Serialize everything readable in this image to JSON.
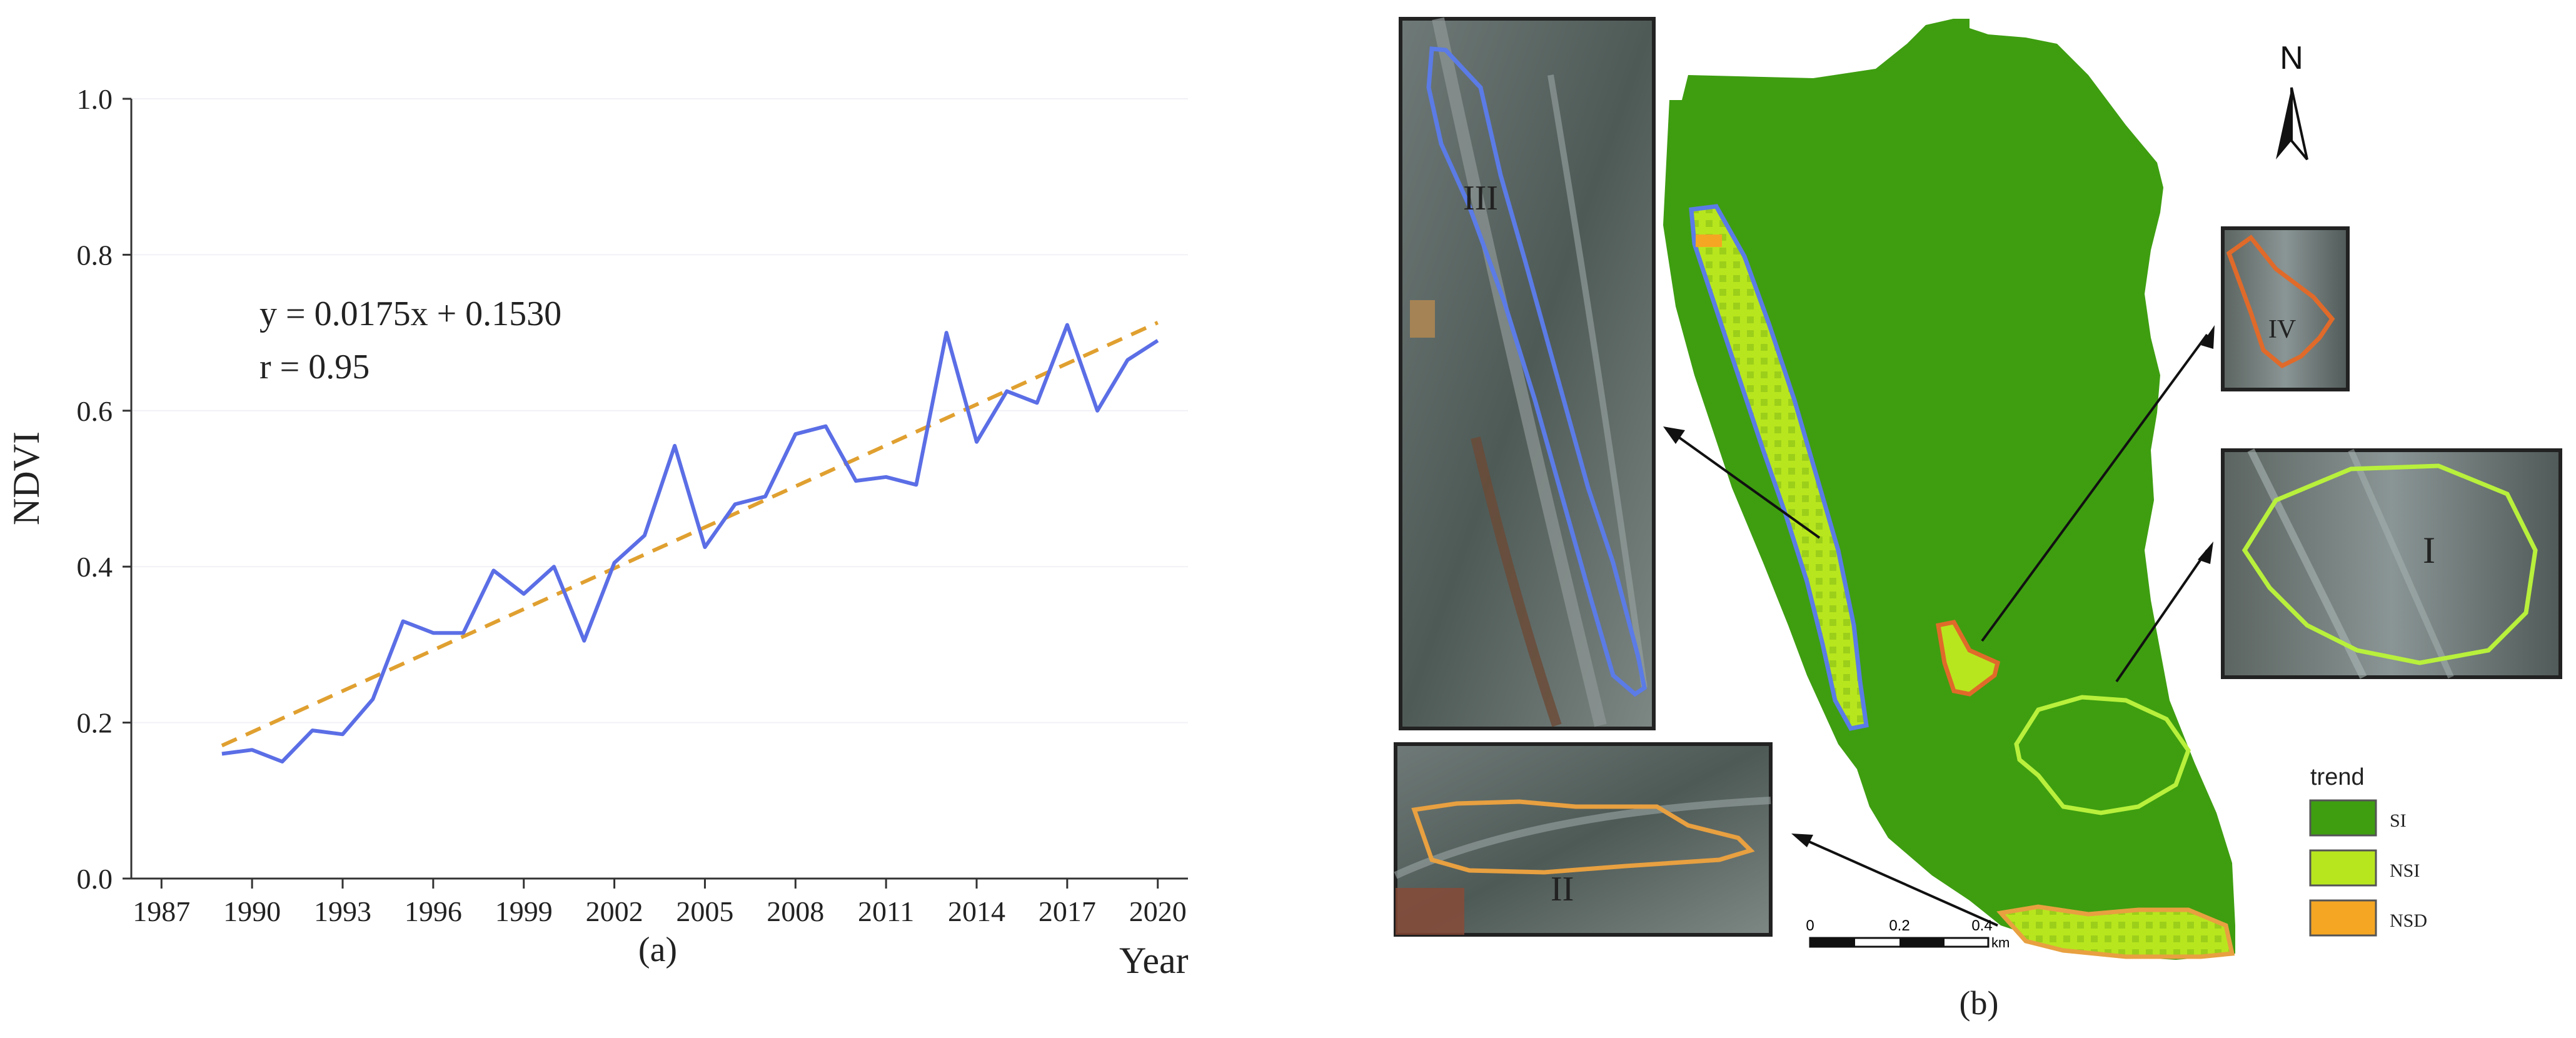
{
  "chart_data": {
    "type": "line",
    "panel_label": "(a)",
    "xlabel": "Year",
    "ylabel": "NDVI",
    "xlim": [
      1986,
      2021
    ],
    "ylim": [
      0.0,
      1.0
    ],
    "x_ticks": [
      "1987",
      "1990",
      "1993",
      "1996",
      "1999",
      "2002",
      "2005",
      "2008",
      "2011",
      "2014",
      "2017",
      "2020"
    ],
    "y_ticks": [
      "0.0",
      "0.2",
      "0.4",
      "0.6",
      "0.8",
      "1.0"
    ],
    "annotation": {
      "equation": "y = 0.0175x + 0.1530",
      "r": "r = 0.95"
    },
    "series": [
      {
        "color": "#5b6ee6",
        "style": "solid",
        "x": [
          1989,
          1990,
          1991,
          1992,
          1993,
          1994,
          1995,
          1996,
          1997,
          1998,
          1999,
          2000,
          2001,
          2002,
          2003,
          2004,
          2005,
          2006,
          2007,
          2008,
          2009,
          2010,
          2011,
          2012,
          2013,
          2014,
          2015,
          2016,
          2017,
          2018,
          2019,
          2020
        ],
        "values": [
          0.16,
          0.165,
          0.15,
          0.19,
          0.185,
          0.23,
          0.33,
          0.315,
          0.315,
          0.395,
          0.365,
          0.4,
          0.305,
          0.405,
          0.44,
          0.555,
          0.425,
          0.48,
          0.49,
          0.57,
          0.58,
          0.51,
          0.515,
          0.505,
          0.7,
          0.56,
          0.625,
          0.61,
          0.71,
          0.6,
          0.665,
          0.69
        ]
      },
      {
        "color": "#e0a030",
        "style": "dashed",
        "x": [
          1989,
          2020
        ],
        "values": [
          0.1705,
          0.713
        ]
      }
    ]
  },
  "map_panel": {
    "panel_label": "(b)",
    "north_label": "N",
    "legend": {
      "title": "trend",
      "items": [
        {
          "label": "SI",
          "color": "#3e9e10"
        },
        {
          "label": "NSI",
          "color": "#b8e61e"
        },
        {
          "label": "NSD",
          "color": "#f5a623"
        }
      ]
    },
    "scale_bar": {
      "ticks": [
        "0",
        "0.2",
        "0.4"
      ],
      "unit": "km"
    },
    "inset_labels": [
      "III",
      "IV",
      "I",
      "II"
    ]
  },
  "colors": {
    "si_green": "#3e9e10",
    "nsi_green": "#b8e61e",
    "nsd_orange": "#f5a623",
    "region_i": "#b8f03c",
    "region_ii": "#e8a040",
    "region_iii": "#5b7be6",
    "region_iv": "#e06a2a"
  }
}
